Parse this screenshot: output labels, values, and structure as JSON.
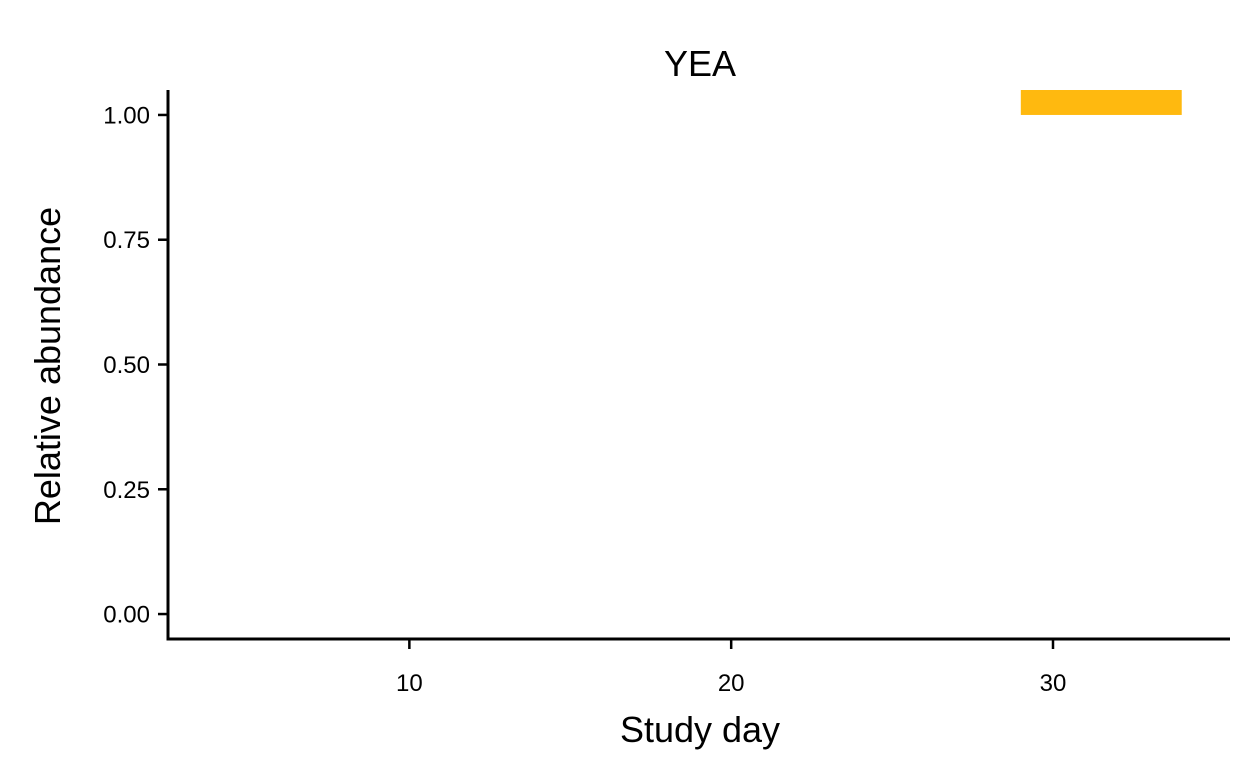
{
  "chart_data": {
    "type": "bar",
    "title": "YEA",
    "xlabel": "Study day",
    "ylabel": "Relative abundance",
    "xlim": [
      2.5,
      35.5
    ],
    "ylim": [
      -0.05,
      1.05
    ],
    "x_ticks": [
      10,
      20,
      30
    ],
    "x_tick_labels": [
      "10",
      "20",
      "30"
    ],
    "y_ticks": [
      0,
      0.25,
      0.5,
      0.75,
      1.0
    ],
    "y_tick_labels": [
      "0.00",
      "0.25",
      "0.50",
      "0.75",
      "1.00"
    ],
    "grid": false,
    "series": [
      {
        "color": "#FFB90F",
        "bars": [
          {
            "x_start": 29,
            "x_end": 34,
            "y_min": 1.0,
            "y_max": 1.05
          }
        ]
      }
    ]
  }
}
